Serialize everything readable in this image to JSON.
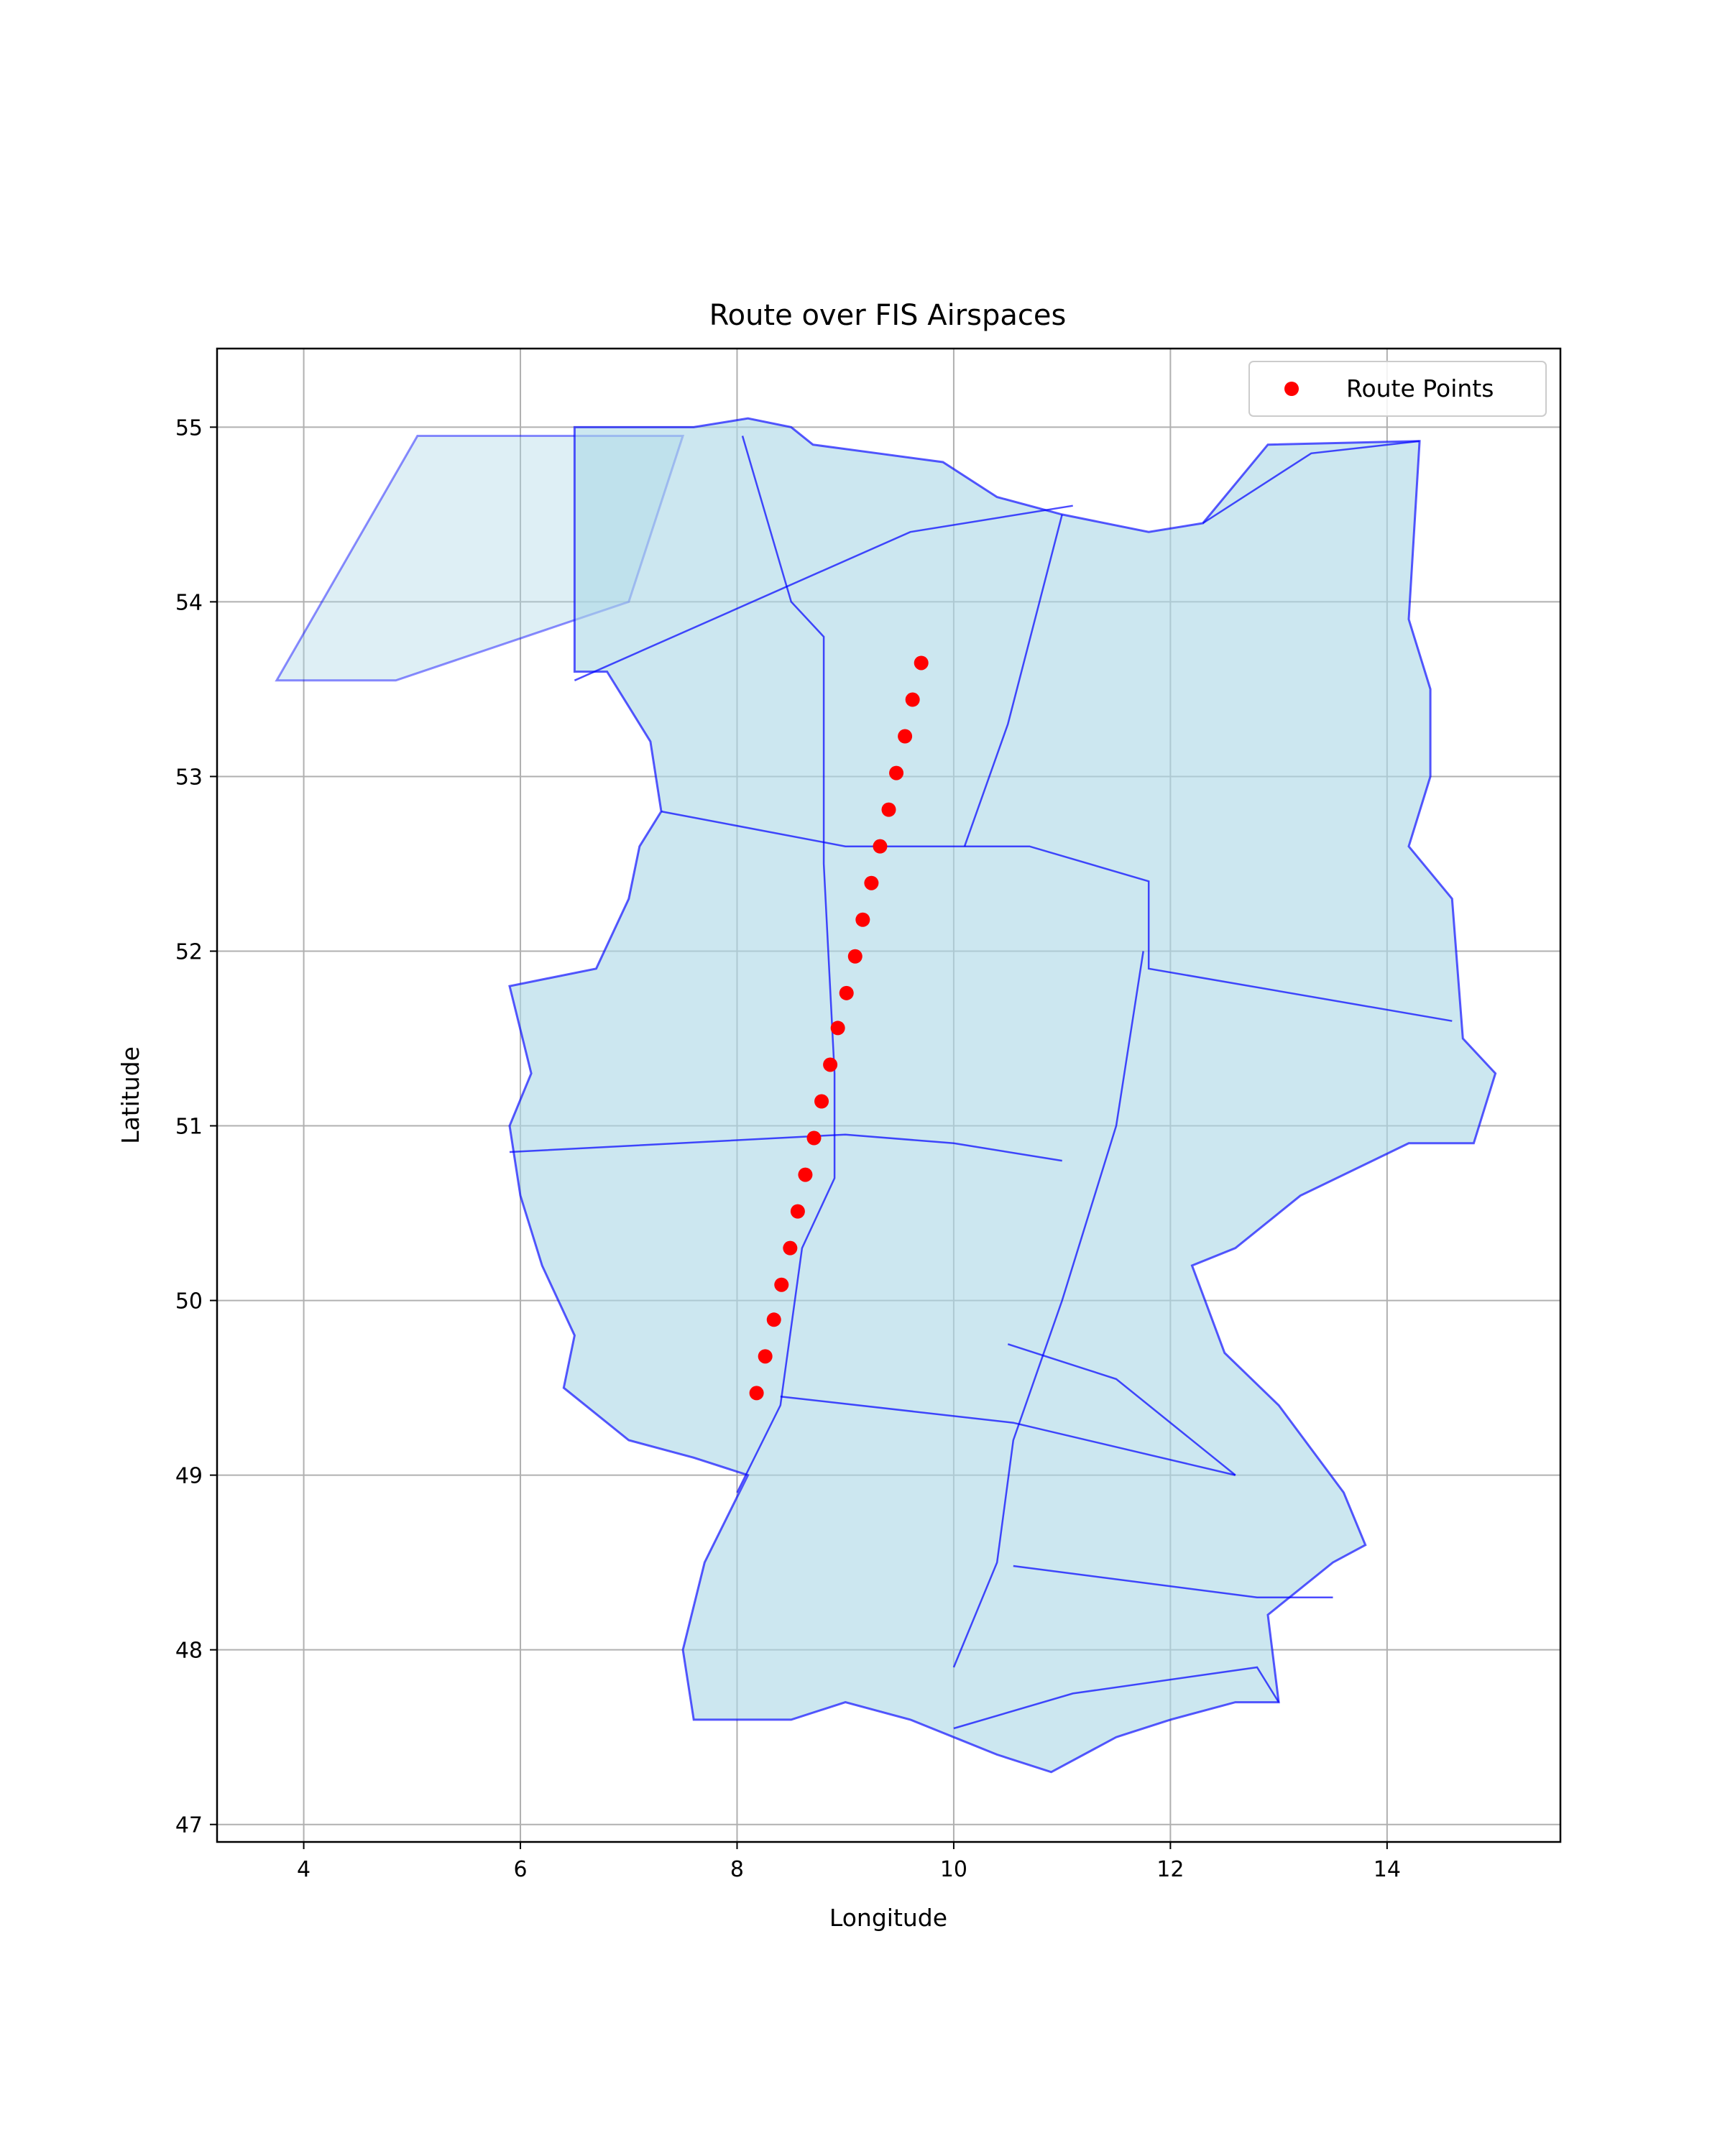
{
  "chart_data": {
    "type": "scatter",
    "title": "Route over FIS Airspaces",
    "xlabel": "Longitude",
    "ylabel": "Latitude",
    "xlim": [
      3.2,
      15.6
    ],
    "ylim": [
      46.9,
      55.45
    ],
    "xticks": [
      4,
      6,
      8,
      10,
      12,
      14
    ],
    "yticks": [
      47,
      48,
      49,
      50,
      51,
      52,
      53,
      54,
      55
    ],
    "grid": true,
    "legend_position": "top-right",
    "series": [
      {
        "name": "Route Points",
        "color": "#ff0000",
        "marker": "circle",
        "x": [
          9.7,
          9.62,
          9.55,
          9.47,
          9.4,
          9.32,
          9.24,
          9.16,
          9.09,
          9.01,
          8.93,
          8.86,
          8.78,
          8.71,
          8.63,
          8.56,
          8.49,
          8.41,
          8.34,
          8.26,
          8.18
        ],
        "y": [
          53.65,
          53.44,
          53.23,
          53.02,
          52.81,
          52.6,
          52.39,
          52.18,
          51.97,
          51.76,
          51.56,
          51.35,
          51.14,
          50.93,
          50.72,
          50.51,
          50.3,
          50.09,
          49.89,
          49.68,
          49.47
        ]
      }
    ],
    "background_layer": {
      "name": "FIS airspace polygons",
      "fill": "#add8e6",
      "edge": "#0000ff",
      "outline": [
        [
          6.5,
          55.0
        ],
        [
          7.6,
          55.0
        ],
        [
          8.1,
          55.05
        ],
        [
          8.5,
          55.0
        ],
        [
          8.7,
          54.9
        ],
        [
          9.3,
          54.85
        ],
        [
          9.9,
          54.8
        ],
        [
          10.4,
          54.6
        ],
        [
          11.0,
          54.5
        ],
        [
          11.8,
          54.4
        ],
        [
          12.3,
          54.45
        ],
        [
          12.9,
          54.9
        ],
        [
          14.3,
          54.92
        ],
        [
          14.2,
          53.9
        ],
        [
          14.4,
          53.5
        ],
        [
          14.4,
          53.0
        ],
        [
          14.2,
          52.6
        ],
        [
          14.6,
          52.3
        ],
        [
          14.7,
          51.5
        ],
        [
          15.0,
          51.3
        ],
        [
          14.8,
          50.9
        ],
        [
          14.2,
          50.9
        ],
        [
          13.2,
          50.6
        ],
        [
          12.6,
          50.3
        ],
        [
          12.2,
          50.2
        ],
        [
          12.5,
          49.7
        ],
        [
          13.0,
          49.4
        ],
        [
          13.6,
          48.9
        ],
        [
          13.8,
          48.6
        ],
        [
          13.5,
          48.5
        ],
        [
          12.9,
          48.2
        ],
        [
          13.0,
          47.7
        ],
        [
          12.6,
          47.7
        ],
        [
          12.0,
          47.6
        ],
        [
          11.5,
          47.5
        ],
        [
          10.9,
          47.3
        ],
        [
          10.4,
          47.4
        ],
        [
          10.0,
          47.5
        ],
        [
          9.6,
          47.6
        ],
        [
          9.0,
          47.7
        ],
        [
          8.5,
          47.6
        ],
        [
          7.9,
          47.6
        ],
        [
          7.6,
          47.6
        ],
        [
          7.5,
          48.0
        ],
        [
          7.7,
          48.5
        ],
        [
          8.1,
          49.0
        ],
        [
          7.6,
          49.1
        ],
        [
          7.0,
          49.2
        ],
        [
          6.4,
          49.5
        ],
        [
          6.5,
          49.8
        ],
        [
          6.2,
          50.2
        ],
        [
          6.0,
          50.6
        ],
        [
          5.9,
          51.0
        ],
        [
          6.1,
          51.3
        ],
        [
          5.9,
          51.8
        ],
        [
          6.7,
          51.9
        ],
        [
          7.0,
          52.3
        ],
        [
          7.1,
          52.6
        ],
        [
          7.3,
          52.8
        ],
        [
          7.2,
          53.2
        ],
        [
          7.0,
          53.4
        ],
        [
          6.8,
          53.6
        ],
        [
          6.5,
          53.6
        ]
      ],
      "north_sea_polygon": [
        [
          3.75,
          53.55
        ],
        [
          4.85,
          53.55
        ],
        [
          7.0,
          54.0
        ],
        [
          7.5,
          54.95
        ],
        [
          5.05,
          54.95
        ]
      ],
      "internal_sectors": [
        [
          [
            6.5,
            53.55
          ],
          [
            9.6,
            54.4
          ],
          [
            11.1,
            54.55
          ]
        ],
        [
          [
            8.05,
            54.95
          ],
          [
            8.5,
            54.0
          ],
          [
            8.8,
            53.8
          ],
          [
            8.8,
            52.5
          ],
          [
            8.9,
            51.3
          ],
          [
            8.9,
            50.7
          ],
          [
            8.6,
            50.3
          ],
          [
            8.4,
            49.4
          ],
          [
            8.0,
            48.9
          ]
        ],
        [
          [
            7.3,
            52.8
          ],
          [
            9.0,
            52.6
          ],
          [
            10.7,
            52.6
          ],
          [
            11.8,
            52.4
          ],
          [
            11.8,
            51.9
          ],
          [
            14.6,
            51.6
          ]
        ],
        [
          [
            11.0,
            54.5
          ],
          [
            10.5,
            53.3
          ],
          [
            10.1,
            52.6
          ]
        ],
        [
          [
            11.75,
            52.0
          ],
          [
            11.5,
            51.0
          ],
          [
            11.0,
            50.0
          ],
          [
            10.55,
            49.2
          ],
          [
            10.4,
            48.5
          ],
          [
            10.0,
            47.9
          ]
        ],
        [
          [
            5.9,
            50.85
          ],
          [
            9.0,
            50.95
          ],
          [
            10.0,
            50.9
          ],
          [
            11.0,
            50.8
          ]
        ],
        [
          [
            8.4,
            49.45
          ],
          [
            10.55,
            49.3
          ],
          [
            12.6,
            49.0
          ]
        ],
        [
          [
            10.55,
            48.48
          ],
          [
            12.8,
            48.3
          ],
          [
            13.5,
            48.3
          ]
        ],
        [
          [
            10.5,
            49.75
          ],
          [
            11.5,
            49.55
          ],
          [
            12.6,
            49.0
          ]
        ],
        [
          [
            10.0,
            47.55
          ],
          [
            11.1,
            47.75
          ],
          [
            12.8,
            47.9
          ],
          [
            13.0,
            47.7
          ]
        ],
        [
          [
            12.3,
            54.45
          ],
          [
            13.3,
            54.85
          ],
          [
            14.3,
            54.92
          ]
        ]
      ]
    }
  }
}
